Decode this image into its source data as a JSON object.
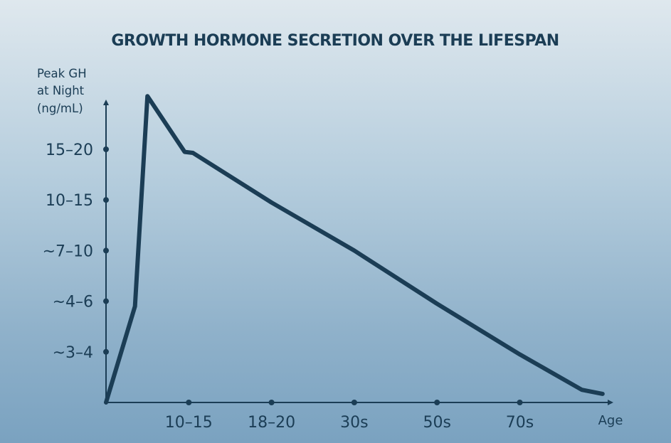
{
  "chart_data": {
    "type": "line",
    "title": "GROWTH HORMONE SECRETION OVER THE LIFESPAN",
    "ylabel_lines": [
      "Peak GH",
      "at Night",
      "(ng/mL)"
    ],
    "xlabel": "Age",
    "x_ticks": [
      "10–15",
      "18–20",
      "30s",
      "50s",
      "70s"
    ],
    "y_ticks": [
      "~3–4",
      "~4–6",
      "~7–10",
      "10–15",
      "15–20"
    ],
    "points": [
      {
        "x": 0,
        "y": 0
      },
      {
        "x": 0.35,
        "y": 1.9
      },
      {
        "x": 0.5,
        "y": 6.05
      },
      {
        "x": 0.95,
        "y": 4.95
      },
      {
        "x": 1.05,
        "y": 4.93
      },
      {
        "x": 2,
        "y": 3.95
      },
      {
        "x": 3,
        "y": 3.0
      },
      {
        "x": 4,
        "y": 1.95
      },
      {
        "x": 5,
        "y": 0.95
      },
      {
        "x": 5.75,
        "y": 0.25
      },
      {
        "x": 6.0,
        "y": 0.17
      }
    ],
    "xlim": [
      0,
      6.3
    ],
    "ylim": [
      0,
      6.0
    ],
    "color": "#1b3d55"
  }
}
